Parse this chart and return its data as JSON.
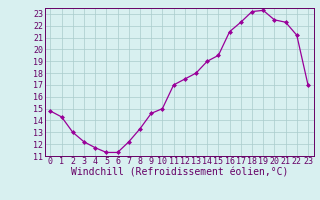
{
  "x": [
    0,
    1,
    2,
    3,
    4,
    5,
    6,
    7,
    8,
    9,
    10,
    11,
    12,
    13,
    14,
    15,
    16,
    17,
    18,
    19,
    20,
    21,
    22,
    23
  ],
  "y": [
    14.8,
    14.3,
    13.0,
    12.2,
    11.7,
    11.3,
    11.3,
    12.2,
    13.3,
    14.6,
    15.0,
    17.0,
    17.5,
    18.0,
    19.0,
    19.5,
    21.5,
    22.3,
    23.2,
    23.3,
    22.5,
    22.3,
    21.2,
    17.0
  ],
  "line_color": "#990099",
  "marker": "D",
  "marker_size": 2,
  "bg_color": "#d8f0f0",
  "grid_color": "#aacccc",
  "xlabel": "Windchill (Refroidissement éolien,°C)",
  "xlabel_fontsize": 7,
  "ylim": [
    11,
    23.5
  ],
  "xlim": [
    -0.5,
    23.5
  ],
  "yticks": [
    11,
    12,
    13,
    14,
    15,
    16,
    17,
    18,
    19,
    20,
    21,
    22,
    23
  ],
  "xticks": [
    0,
    1,
    2,
    3,
    4,
    5,
    6,
    7,
    8,
    9,
    10,
    11,
    12,
    13,
    14,
    15,
    16,
    17,
    18,
    19,
    20,
    21,
    22,
    23
  ],
  "tick_fontsize": 6,
  "tick_color": "#660066",
  "spine_color": "#660066"
}
